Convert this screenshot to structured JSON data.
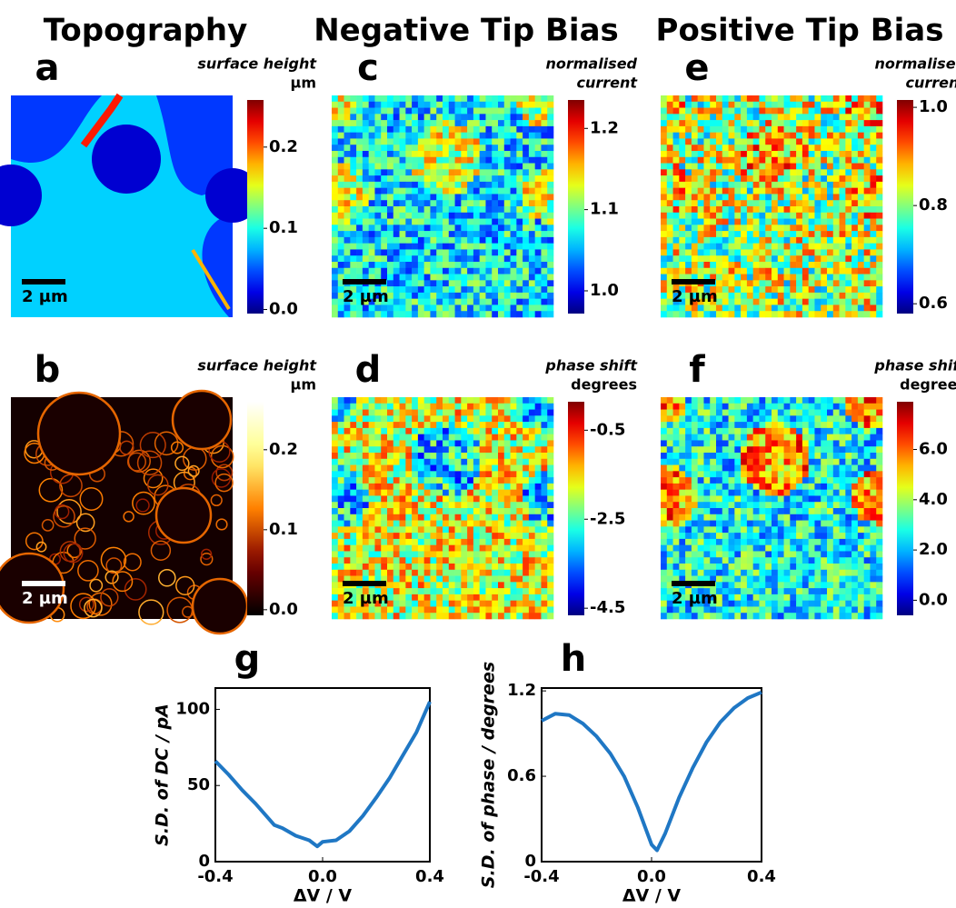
{
  "column_titles": [
    "Topography",
    "Negative Tip Bias",
    "Positive Tip Bias"
  ],
  "chart_data": [
    {
      "type": "heatmap",
      "panel": "a",
      "colormap": "jet",
      "colorbar_label": [
        "surface height",
        "µm"
      ],
      "italic_lines": 1,
      "clim": [
        -0.005,
        0.258
      ],
      "cticks": [
        {
          "value": 0,
          "label": "0.0"
        },
        0.1,
        0.2
      ],
      "scalebar": "2 µm"
    },
    {
      "type": "heatmap",
      "panel": "c",
      "colormap": "jet",
      "colorbar_label": [
        "normalised",
        "current"
      ],
      "italic_lines": 2,
      "clim": [
        0.972,
        1.235
      ],
      "cticks": [
        {
          "value": 1,
          "label": "1.0"
        },
        1.1,
        1.2
      ],
      "scalebar": "2 µm"
    },
    {
      "type": "heatmap",
      "panel": "e",
      "colormap": "jet",
      "colorbar_label": [
        "normalised",
        "current"
      ],
      "italic_lines": 2,
      "clim": [
        0.58,
        1.015
      ],
      "cticks": [
        0.6,
        0.8,
        {
          "value": 1,
          "label": "1.0"
        }
      ],
      "scalebar": "2 µm"
    },
    {
      "type": "heatmap",
      "panel": "b",
      "colormap": "afmhot",
      "colorbar_label": [
        "surface height",
        "µm"
      ],
      "italic_lines": 1,
      "clim": [
        -0.007,
        0.26
      ],
      "cticks": [
        {
          "value": 0,
          "label": "0.0"
        },
        0.1,
        0.2
      ],
      "scalebar": "2 µm"
    },
    {
      "type": "heatmap",
      "panel": "d",
      "colormap": "jet",
      "colorbar_label": [
        "phase shift",
        "degrees"
      ],
      "italic_lines": 1,
      "clim": [
        -4.66,
        0.14
      ],
      "cticks": [
        -4.5,
        -2.5,
        -0.5
      ],
      "scalebar": "2 µm"
    },
    {
      "type": "heatmap",
      "panel": "f",
      "colormap": "jet",
      "colorbar_label": [
        "phase shift",
        "degrees"
      ],
      "italic_lines": 1,
      "clim": [
        -0.6,
        7.9
      ],
      "cticks": [
        {
          "value": 0,
          "label": "0.0"
        },
        {
          "value": 2,
          "label": "2.0"
        },
        {
          "value": 4,
          "label": "4.0"
        },
        {
          "value": 6,
          "label": "6.0"
        }
      ],
      "scalebar": "2 µm"
    },
    {
      "type": "line",
      "panel": "g",
      "ylabel": "S.D. of DC / pA",
      "xlabel": "ΔV / V",
      "color": "#1f77c4",
      "x": [
        -0.4,
        -0.35,
        -0.3,
        -0.25,
        -0.2,
        -0.18,
        -0.15,
        -0.1,
        -0.05,
        -0.02,
        0,
        0.05,
        0.1,
        0.15,
        0.2,
        0.25,
        0.3,
        0.35,
        0.4
      ],
      "values": [
        66,
        57,
        47,
        38,
        28,
        24,
        22,
        17,
        14,
        10,
        13,
        14,
        20,
        30,
        42,
        55,
        70,
        85,
        105
      ],
      "xlim": [
        -0.4,
        0.4
      ],
      "ylim": [
        0,
        114
      ],
      "xticks": [
        -0.4,
        {
          "value": 0,
          "label": "0.0"
        },
        0.4
      ],
      "yticks": [
        0,
        50,
        100
      ]
    },
    {
      "type": "line",
      "panel": "h",
      "ylabel": "S.D. of phase / degrees",
      "xlabel": "ΔV / V",
      "color": "#1f77c4",
      "x": [
        -0.4,
        -0.35,
        -0.3,
        -0.25,
        -0.2,
        -0.15,
        -0.1,
        -0.05,
        0,
        0.02,
        0.05,
        0.1,
        0.15,
        0.2,
        0.25,
        0.3,
        0.35,
        0.4
      ],
      "values": [
        0.99,
        1.04,
        1.03,
        0.97,
        0.88,
        0.76,
        0.6,
        0.38,
        0.12,
        0.08,
        0.2,
        0.45,
        0.66,
        0.84,
        0.98,
        1.08,
        1.15,
        1.19
      ],
      "xlim": [
        -0.4,
        0.4
      ],
      "ylim": [
        0,
        1.22
      ],
      "xticks": [
        -0.4,
        {
          "value": 0,
          "label": "0.0"
        },
        0.4
      ],
      "yticks": [
        0,
        0.6,
        1.2
      ]
    }
  ]
}
